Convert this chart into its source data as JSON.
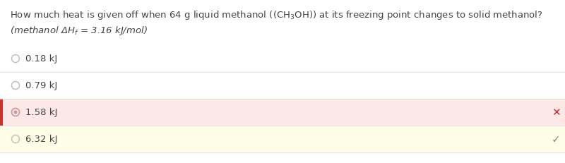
{
  "question_text": "How much heat is given off when 64 g liquid methanol ($\\mathregular{(CH_3OH)}$) at its freezing point changes to solid methanol?",
  "hint_text": "(methanol $\\mathregular{\\Delta H_f}$ = 3.16 kJ/mol)",
  "options": [
    "0.18 kJ",
    "0.79 kJ",
    "1.58 kJ",
    "6.32 kJ"
  ],
  "selected_index": 2,
  "correct_index": 3,
  "selected_bg": "#fde8e8",
  "correct_bg": "#fefee8",
  "selected_left_border": "#cc3333",
  "default_bg": "#ffffff",
  "radio_color": "#bbbbbb",
  "radio_selected_color": "#cc9999",
  "text_color": "#444444",
  "x_color": "#cc2222",
  "check_color": "#888888",
  "font_size": 9.5,
  "option_font_size": 9.5,
  "bg_color": "#ffffff"
}
